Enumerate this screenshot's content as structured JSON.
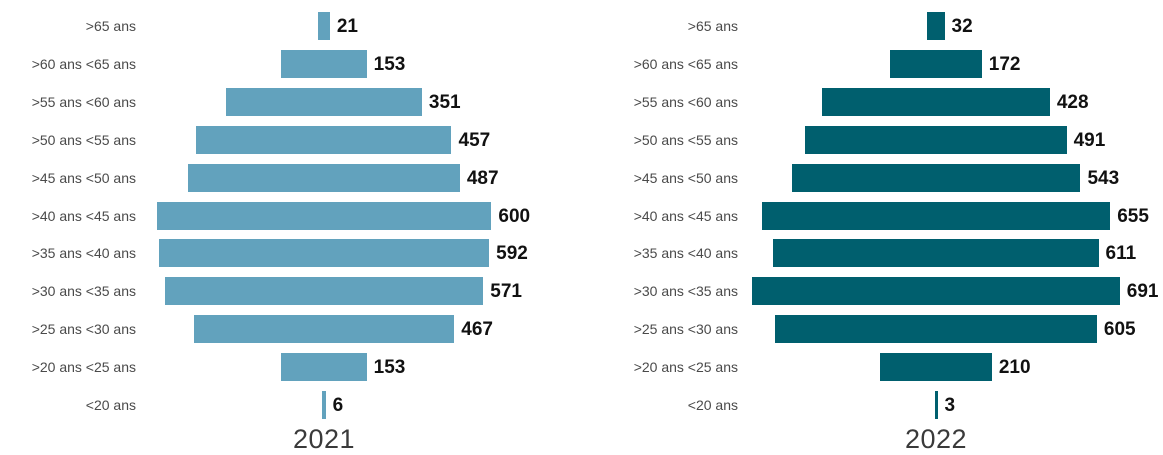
{
  "chart_data": [
    {
      "type": "bar",
      "orientation": "horizontal-centered",
      "title": "2021",
      "color": "#62a2bd",
      "categories": [
        ">65 ans",
        ">60 ans <65 ans",
        ">55 ans <60 ans",
        ">50 ans <55 ans",
        ">45 ans <50 ans",
        ">40 ans <45 ans",
        ">35 ans <40 ans",
        ">30 ans <35 ans",
        ">25 ans <30 ans",
        ">20 ans <25 ans",
        "<20 ans"
      ],
      "values": [
        21,
        153,
        351,
        457,
        487,
        600,
        592,
        571,
        467,
        153,
        6
      ],
      "value_labels": [
        "21",
        "153",
        "351",
        "457",
        "487",
        "600",
        "592",
        "571",
        "467",
        "153",
        "6"
      ]
    },
    {
      "type": "bar",
      "orientation": "horizontal-centered",
      "title": "2022",
      "color": "#005f6e",
      "categories": [
        ">65 ans",
        ">60 ans <65 ans",
        ">55 ans <60 ans",
        ">50 ans <55 ans",
        ">45 ans <50 ans",
        ">40 ans <45 ans",
        ">35 ans <40 ans",
        ">30 ans <35 ans",
        ">25 ans <30 ans",
        ">20 ans <25 ans",
        "<20 ans"
      ],
      "values": [
        32,
        172,
        428,
        491,
        543,
        655,
        611,
        691,
        605,
        210,
        3
      ],
      "value_labels": [
        "32",
        "172",
        "428",
        "491",
        "543",
        "655",
        "611",
        "691",
        "605",
        "210",
        "3"
      ]
    }
  ]
}
